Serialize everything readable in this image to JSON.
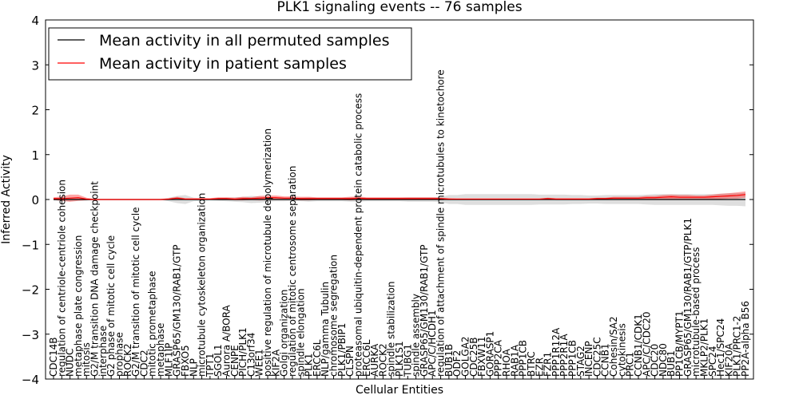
{
  "chart_data": {
    "type": "line",
    "title": "PLK1 signaling events -- 76 samples",
    "xlabel": "Cellular Entities",
    "ylabel": "Inferred Activity",
    "ylim": [
      -4,
      4
    ],
    "yticks": [
      -4,
      -3,
      -2,
      -1,
      0,
      1,
      2,
      3,
      4
    ],
    "grid": false,
    "legend_position": "top-left",
    "categories": [
      "CDC14B",
      "regulation of centriole-centriole cohesion",
      "NUDC",
      "metaphase plate congression",
      "mitosis",
      "G2/M transition DNA damage checkpoint",
      "interphase",
      "G2 phase of mitotic cell cycle",
      "prophase",
      "ROCK2",
      "G2/M transition of mitotic cell cycle",
      "CDC2",
      "mitotic prometaphase",
      "metaphase",
      "MLF1IP",
      "GRASP65/GM130/RAB1/GTP",
      "FBXO5",
      "NLP",
      "microtubule cytoskeleton organization",
      "TPT1",
      "SGOL1",
      "Aurora A/BORA",
      "CENPE",
      "PICH/PLK1",
      "C13orf34",
      "WEE1",
      "positive regulation of microtubule depolymerization",
      "KIF2A",
      "Golgi organization",
      "regulation of mitotic centrosome separation",
      "spindle elongation",
      "PLK1",
      "ERCC6L",
      "NLP/gamma Tubulin",
      "chromosome segregation",
      "PLK1/PBIP1",
      "CLSPN",
      "proteasomal ubiquitin-dependent protein catabolic process",
      "ERCC6L",
      "AURKA",
      "ROCK2",
      "spindle stabilization",
      "PLK1S1",
      "TUBG1",
      "spindle assembly",
      "GRASP65/GM130/RAB1/GTP",
      "APC/C/HCDH1",
      "regulation of attachment of spindle microtubules to kinetochore",
      "BUB1B",
      "ODF2",
      "GOLGA2",
      "CDC25B",
      "FBXW11",
      "GORASP1",
      "PPP2CA",
      "RHOA",
      "RAB1A",
      "PPP1CB",
      "BTRC",
      "EZR",
      "FZR1",
      "PPP1R12A",
      "PPP2R1A",
      "PPP1CB",
      "STAG2",
      "INCENP",
      "CDC25C",
      "CCNB1",
      "Cohesin/SA2",
      "cytokinesis",
      "PRC1",
      "CCNB1/CDK1",
      "APC/C/CDC20",
      "CDC20",
      "NDC80",
      "BUB1",
      "PP1CB/MYPT1",
      "GRASP65/GM130/RAB1/GTP/PLK1",
      "microtubule-based process",
      "MKLP2/PLK1",
      "SPC24",
      "Hec1/SPC24",
      "KIF20A",
      "PLK1/PRC1-2",
      "PP2A-alpha B56"
    ],
    "series": [
      {
        "name": "Mean activity in all permuted samples",
        "color": "#000000",
        "values": [
          0,
          0,
          0,
          0,
          0,
          0,
          0,
          0,
          0,
          0,
          0,
          0,
          0,
          0,
          0,
          0,
          0,
          0,
          0,
          0,
          0,
          0,
          0,
          0,
          0,
          0,
          0,
          0,
          0,
          0,
          0,
          0,
          0,
          0,
          0,
          0,
          0,
          0,
          0,
          0,
          0,
          0,
          0,
          0,
          0,
          0,
          0,
          0,
          0,
          0,
          0,
          0,
          0,
          0,
          0,
          0,
          0,
          0,
          0,
          0,
          0,
          0,
          0,
          0,
          0,
          0,
          0,
          0,
          0,
          0,
          0,
          0,
          0,
          0,
          0,
          0,
          0,
          0,
          0,
          0,
          0,
          0,
          0,
          0,
          0
        ],
        "band_halfwidth": [
          0.02,
          0.03,
          0.03,
          0.02,
          0.02,
          0.01,
          0.01,
          0.01,
          0.01,
          0.01,
          0.01,
          0.01,
          0.01,
          0.01,
          0.04,
          0.08,
          0.1,
          0.04,
          0.03,
          0.02,
          0.03,
          0.04,
          0.05,
          0.06,
          0.08,
          0.07,
          0.05,
          0.04,
          0.04,
          0.03,
          0.04,
          0.05,
          0.04,
          0.04,
          0.04,
          0.04,
          0.05,
          0.05,
          0.04,
          0.04,
          0.04,
          0.04,
          0.04,
          0.05,
          0.05,
          0.05,
          0.05,
          0.06,
          0.1,
          0.1,
          0.12,
          0.12,
          0.12,
          0.12,
          0.12,
          0.12,
          0.12,
          0.12,
          0.12,
          0.11,
          0.11,
          0.11,
          0.11,
          0.1,
          0.1,
          0.09,
          0.09,
          0.1,
          0.1,
          0.1,
          0.1,
          0.1,
          0.11,
          0.12,
          0.12,
          0.12,
          0.12,
          0.12,
          0.12,
          0.12,
          0.12,
          0.13,
          0.14,
          0.14,
          0.15
        ]
      },
      {
        "name": "Mean activity in patient samples",
        "color": "#ff0000",
        "values": [
          0.02,
          0.02,
          0.03,
          0.04,
          0.01,
          0,
          0,
          0,
          0,
          0,
          0,
          0,
          0,
          0,
          0.01,
          0.03,
          0.01,
          0.01,
          0.01,
          0.01,
          0.02,
          0.02,
          0.01,
          0.02,
          0.02,
          0.03,
          0.04,
          0.04,
          0.03,
          0.03,
          0.02,
          0.02,
          0.02,
          0.02,
          0.02,
          0.02,
          0.02,
          0.03,
          0.02,
          0.02,
          0.02,
          0.02,
          0.02,
          0.02,
          0.02,
          0.02,
          0.02,
          0.02,
          0.01,
          0.01,
          0.01,
          0.01,
          0.01,
          0.01,
          0.01,
          0.01,
          0.01,
          0.01,
          0.01,
          0.01,
          0.02,
          0.01,
          0.01,
          0.01,
          0.01,
          0.01,
          0.02,
          0.02,
          0.03,
          0.03,
          0.03,
          0.03,
          0.04,
          0.04,
          0.05,
          0.06,
          0.05,
          0.05,
          0.05,
          0.05,
          0.06,
          0.07,
          0.08,
          0.09,
          0.11
        ],
        "band_halfwidth": [
          0.03,
          0.05,
          0.08,
          0.07,
          0.03,
          0.01,
          0.01,
          0.01,
          0.01,
          0.01,
          0.01,
          0.01,
          0.01,
          0.01,
          0.02,
          0.03,
          0.02,
          0.02,
          0.02,
          0.02,
          0.03,
          0.03,
          0.03,
          0.04,
          0.03,
          0.05,
          0.05,
          0.05,
          0.04,
          0.04,
          0.04,
          0.04,
          0.03,
          0.03,
          0.03,
          0.03,
          0.04,
          0.04,
          0.03,
          0.03,
          0.03,
          0.03,
          0.03,
          0.03,
          0.03,
          0.03,
          0.03,
          0.02,
          0.02,
          0.01,
          0.01,
          0.01,
          0.01,
          0.01,
          0.01,
          0.01,
          0.01,
          0.01,
          0.01,
          0.01,
          0.02,
          0.02,
          0.02,
          0.02,
          0.02,
          0.02,
          0.02,
          0.02,
          0.03,
          0.03,
          0.03,
          0.03,
          0.04,
          0.04,
          0.05,
          0.05,
          0.05,
          0.05,
          0.04,
          0.04,
          0.05,
          0.06,
          0.06,
          0.07,
          0.07
        ]
      }
    ]
  }
}
